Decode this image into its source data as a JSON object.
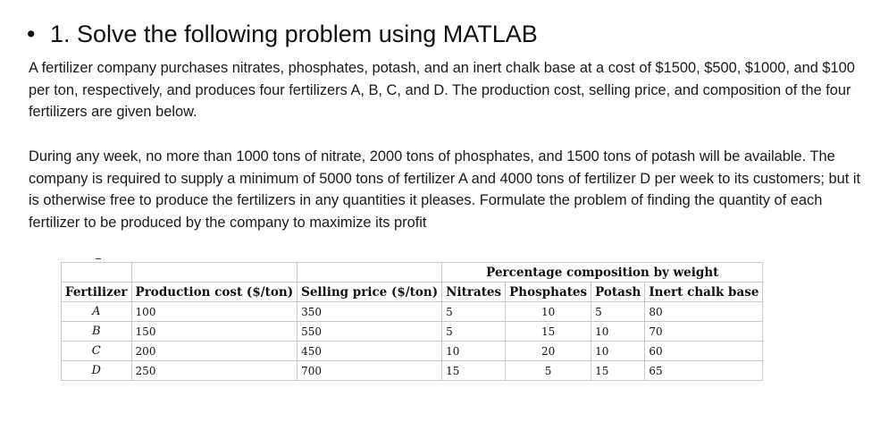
{
  "heading": {
    "bullet": "•",
    "text": "1. Solve the following problem using MATLAB"
  },
  "paragraphs": [
    "A fertilizer company purchases nitrates, phosphates, potash, and an inert chalk base at a cost of $1500, $500, $1000, and $100 per ton, respectively, and produces four fertilizers A, B, C, and D. The production cost, selling price, and composition of the four fertilizers are given below.",
    "During any week, no more than 1000 tons of nitrate, 2000 tons of phosphates, and 1500 tons of potash will be available. The company is required to supply a minimum of 5000 tons of fertilizer A and 4000 tons of fertilizer D per week to its customers; but it is otherwise free to produce the fertilizers in any quantities it pleases. Formulate the problem of finding the quantity of each fertilizer to be produced by the company to maximize its profit"
  ],
  "table": {
    "group_header": "Percentage composition by weight",
    "headers": [
      "Fertilizer",
      "Production cost ($/ton)",
      "Selling price ($/ton)",
      "Nitrates",
      "Phosphates",
      "Potash",
      "Inert chalk base"
    ],
    "rows": [
      [
        "A",
        "100",
        "350",
        "5",
        "10",
        "5",
        "80"
      ],
      [
        "B",
        "150",
        "550",
        "5",
        "15",
        "10",
        "70"
      ],
      [
        "C",
        "200",
        "450",
        "10",
        "20",
        "10",
        "60"
      ],
      [
        "D",
        "250",
        "700",
        "15",
        "5",
        "15",
        "65"
      ]
    ]
  }
}
